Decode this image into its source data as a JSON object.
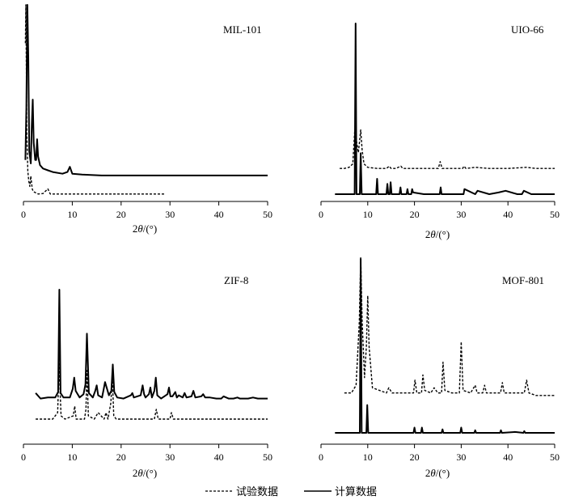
{
  "chart_data": [
    {
      "type": "line",
      "title": "MIL-101",
      "xlabel": "2θ/(°)",
      "xlim": [
        0,
        50
      ],
      "xticks": [
        0,
        10,
        20,
        30,
        40,
        50
      ],
      "series": [
        {
          "name": "计算数据",
          "style": "solid",
          "x": [
            0.4,
            0.6,
            0.8,
            1.0,
            1.2,
            1.5,
            1.7,
            1.9,
            2.1,
            2.4,
            2.6,
            2.8,
            3.0,
            3.4,
            4.0,
            5.0,
            6.0,
            8.0,
            9.0,
            9.5,
            10.0,
            12.0,
            16.0,
            20.0,
            30.0,
            40.0,
            50.0
          ],
          "y": [
            10,
            40,
            100,
            70,
            15,
            8,
            30,
            45,
            20,
            10,
            10,
            22,
            12,
            7,
            5,
            4,
            3,
            2,
            3,
            6,
            2,
            1.5,
            1,
            1,
            1,
            1,
            1
          ]
        },
        {
          "name": "试验数据",
          "style": "dashed",
          "x": [
            0.4,
            0.5,
            0.7,
            0.9,
            1.1,
            1.3,
            1.5,
            1.8,
            2.0,
            2.5,
            3.0,
            4.0,
            5.0,
            5.5,
            6.0,
            8.0,
            10.0,
            15.0,
            20.0,
            25.0,
            29.0
          ],
          "y": [
            60,
            75,
            25,
            10,
            6,
            4,
            8,
            3,
            2,
            1.5,
            1,
            1.2,
            3,
            1,
            1,
            1,
            1,
            1,
            1,
            1,
            1
          ]
        }
      ]
    },
    {
      "type": "line",
      "title": "UIO-66",
      "xlabel": "2θ/(°)",
      "xlim": [
        0,
        50
      ],
      "xticks": [
        0,
        10,
        20,
        30,
        40,
        50
      ],
      "series": [
        {
          "name": "计算数据",
          "style": "solid",
          "x": [
            3,
            5,
            6.5,
            7.2,
            7.4,
            7.6,
            8.3,
            8.5,
            8.7,
            10,
            11.8,
            12.0,
            12.2,
            14,
            14.2,
            14.4,
            14.7,
            14.9,
            15.1,
            16.8,
            17.0,
            17.2,
            18.3,
            18.5,
            18.7,
            19.3,
            19.5,
            19.7,
            22.0,
            25.4,
            25.6,
            25.8,
            29.5,
            30.5,
            30.7,
            33,
            33.5,
            36,
            38,
            39.5,
            42,
            43.0,
            43.4,
            45,
            50
          ],
          "y": [
            0,
            0,
            0,
            0,
            100,
            0,
            0,
            24,
            0,
            0,
            0,
            9,
            0,
            0,
            6,
            0,
            0,
            7,
            0,
            0,
            4,
            0,
            0,
            3,
            0,
            0,
            3,
            1,
            0,
            0,
            4,
            0,
            0,
            0,
            3,
            0,
            2,
            0,
            1,
            2,
            0,
            0,
            2,
            0,
            0
          ]
        },
        {
          "name": "试验数据",
          "style": "dashed",
          "x": [
            4,
            5,
            6,
            6.8,
            7.2,
            7.4,
            7.6,
            8.0,
            8.2,
            8.5,
            8.8,
            9.2,
            10,
            12,
            14.0,
            14.6,
            15.0,
            16,
            17.1,
            17.5,
            19,
            22,
            25.1,
            25.5,
            25.9,
            27,
            30.3,
            30.6,
            31,
            33,
            36,
            40,
            44,
            46,
            48,
            50
          ],
          "y": [
            2,
            2,
            3,
            6,
            34,
            40,
            26,
            16,
            24,
            36,
            18,
            6,
            3,
            2,
            2,
            4,
            2,
            2,
            4,
            2,
            2,
            2,
            2,
            8,
            2,
            2,
            2,
            4,
            2,
            3,
            2,
            2,
            3,
            2,
            2,
            2
          ]
        }
      ]
    },
    {
      "type": "line",
      "title": "ZIF-8",
      "xlabel": "2θ/(°)",
      "xlim": [
        0,
        50
      ],
      "xticks": [
        0,
        10,
        20,
        30,
        40,
        50
      ],
      "series": [
        {
          "name": "计算数据",
          "style": "solid",
          "x": [
            2.5,
            3.5,
            5,
            6.5,
            7.1,
            7.35,
            7.6,
            8.2,
            9.5,
            10.1,
            10.4,
            10.7,
            11.5,
            12.3,
            12.7,
            13.0,
            13.4,
            14.2,
            14.7,
            15.0,
            15.3,
            16.1,
            16.4,
            16.7,
            17.5,
            18.0,
            18.3,
            18.6,
            19.2,
            20.5,
            22.0,
            22.3,
            22.6,
            24.0,
            24.4,
            24.7,
            25.0,
            25.7,
            26.0,
            26.3,
            26.8,
            27.1,
            27.4,
            28.2,
            29.5,
            29.8,
            30.1,
            30.5,
            31.1,
            31.4,
            31.8,
            32.6,
            33.0,
            33.4,
            34.4,
            34.8,
            35.2,
            36.4,
            36.8,
            37.2,
            38.2,
            39.5,
            40.5,
            41.0,
            42.0,
            43.0,
            43.8,
            44.3,
            46,
            47,
            48,
            49,
            50
          ],
          "y": [
            6,
            1,
            2,
            2,
            7,
            100,
            6,
            2,
            2,
            10,
            20,
            8,
            2,
            5,
            14,
            60,
            6,
            2,
            8,
            13,
            4,
            2,
            9,
            16,
            4,
            8,
            32,
            7,
            2,
            1,
            4,
            6,
            2,
            4,
            13,
            5,
            2,
            5,
            11,
            2,
            8,
            20,
            4,
            1,
            5,
            11,
            3,
            3,
            7,
            2,
            4,
            2,
            6,
            2,
            3,
            8,
            2,
            3,
            5,
            2,
            2,
            1,
            1,
            3,
            1,
            1,
            2,
            1,
            1,
            2,
            1,
            1,
            1
          ]
        },
        {
          "name": "试验数据",
          "style": "dashed",
          "x": [
            2.5,
            6,
            7.0,
            7.3,
            7.7,
            8.5,
            10.2,
            10.5,
            10.8,
            12.5,
            12.8,
            13.0,
            13.3,
            14.5,
            15.3,
            16.5,
            16.9,
            17.3,
            17.9,
            18.2,
            18.5,
            19,
            21,
            24,
            26.8,
            27.2,
            27.6,
            30,
            30.3,
            30.7,
            33,
            35,
            40,
            45,
            50
          ],
          "y": [
            1,
            1,
            3,
            18,
            2,
            1,
            2,
            5,
            1,
            1,
            4,
            16,
            2,
            1,
            3,
            1,
            3,
            1,
            6,
            14,
            2,
            1,
            1,
            1,
            1,
            4,
            1,
            1,
            3,
            1,
            1,
            1,
            1,
            1,
            1
          ]
        }
      ]
    },
    {
      "type": "line",
      "title": "MOF-801",
      "xlabel": "2θ/(°)",
      "xlim": [
        0,
        50
      ],
      "xticks": [
        0,
        10,
        20,
        30,
        40,
        50
      ],
      "series": [
        {
          "name": "计算数据",
          "style": "solid",
          "x": [
            3,
            8.3,
            8.5,
            8.7,
            9.7,
            9.9,
            10.1,
            19.8,
            20.0,
            20.2,
            21.4,
            21.6,
            21.8,
            25.8,
            26.0,
            26.2,
            29.8,
            30.0,
            30.2,
            32.8,
            33.0,
            33.2,
            38.3,
            38.5,
            38.7,
            41.5,
            43.3,
            43.5,
            43.7,
            50
          ],
          "y": [
            0,
            0,
            100,
            0,
            0,
            16,
            0,
            0,
            3,
            0,
            0,
            3,
            0,
            0,
            2,
            0,
            0,
            3,
            0,
            0,
            1.5,
            0,
            0,
            1.5,
            0,
            0.5,
            0,
            1,
            0,
            0
          ]
        },
        {
          "name": "试验数据",
          "style": "dashed",
          "x": [
            5,
            6.5,
            7.5,
            8.2,
            8.5,
            8.8,
            9.3,
            9.7,
            10.0,
            10.3,
            11,
            14,
            14.5,
            15.2,
            18,
            19.8,
            20.1,
            20.5,
            21.5,
            21.8,
            22.2,
            23.5,
            24.2,
            25,
            25.8,
            26.1,
            26.5,
            28,
            29.6,
            30.0,
            30.4,
            32,
            33.0,
            33.4,
            34.6,
            35.0,
            35.4,
            38.4,
            38.8,
            39.2,
            41.3,
            41.8,
            43.5,
            44.0,
            44.5,
            46,
            50
          ],
          "y": [
            2,
            2,
            5,
            30,
            55,
            30,
            8,
            20,
            40,
            20,
            4,
            2,
            4,
            2,
            2,
            2,
            7,
            2,
            2,
            9,
            3,
            2,
            4,
            2,
            2,
            14,
            3,
            2,
            2,
            22,
            3,
            2,
            5,
            2,
            2,
            5,
            2,
            2,
            6,
            2,
            2,
            2,
            2,
            7,
            2,
            1,
            1
          ]
        }
      ]
    }
  ],
  "legend": {
    "experimental_label": "试验数据",
    "calculated_label": "计算数据"
  }
}
